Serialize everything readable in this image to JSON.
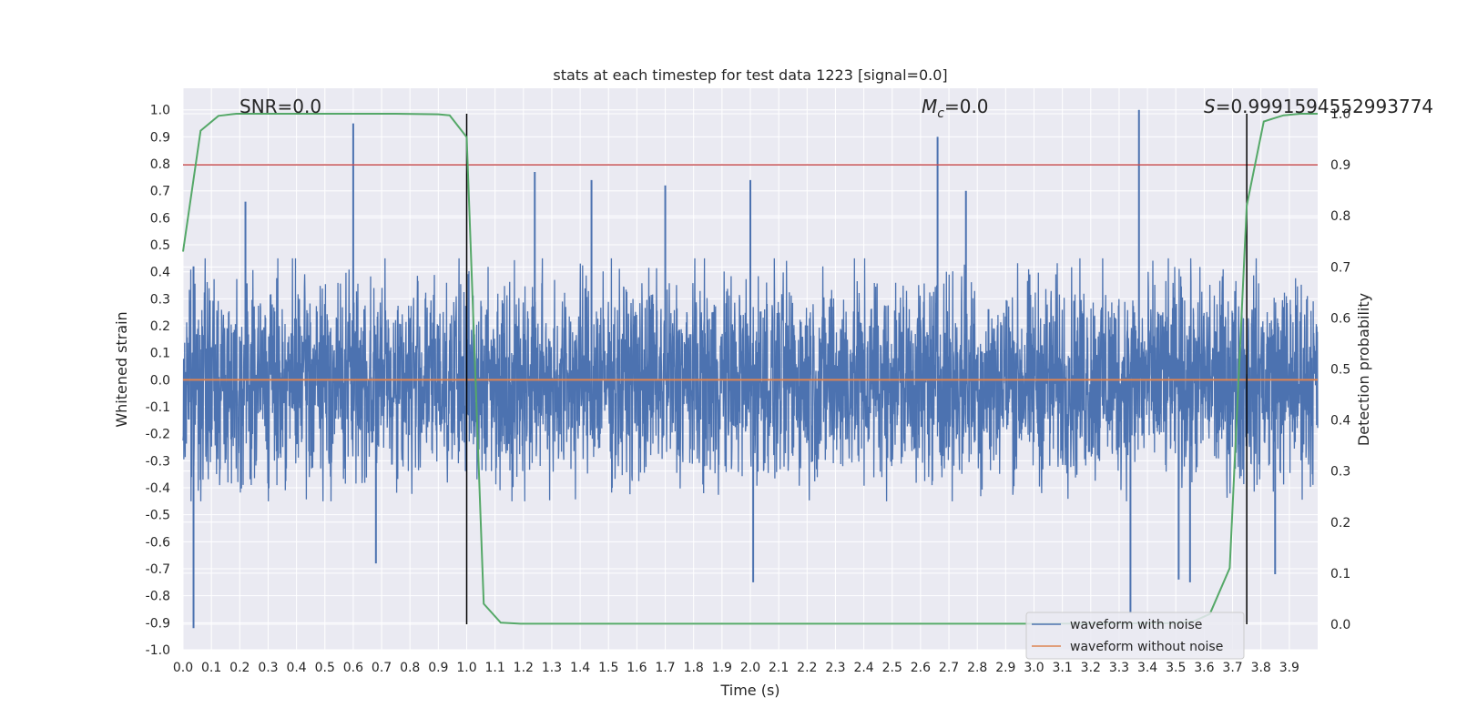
{
  "chart_data": {
    "type": "line",
    "title": "stats at each timestep for test data 1223 [signal=0.0]",
    "xlabel": "Time (s)",
    "ylabel": "Whitened strain",
    "ylabel_right": "Detection probability",
    "xlim": [
      0.0,
      4.0
    ],
    "ylim": [
      -1.0,
      1.08
    ],
    "ylim_right": [
      -0.05,
      1.05
    ],
    "x_ticks": [
      0.0,
      0.1,
      0.2,
      0.3,
      0.4,
      0.5,
      0.6,
      0.7,
      0.8,
      0.9,
      1.0,
      1.1,
      1.2,
      1.3,
      1.4,
      1.5,
      1.6,
      1.7,
      1.8,
      1.9,
      2.0,
      2.1,
      2.2,
      2.3,
      2.4,
      2.5,
      2.6,
      2.7,
      2.8,
      2.9,
      3.0,
      3.1,
      3.2,
      3.3,
      3.4,
      3.5,
      3.6,
      3.7,
      3.8,
      3.9
    ],
    "x_tick_labels": [
      "0.0",
      "0.1",
      "0.2",
      "0.3",
      "0.4",
      "0.5",
      "0.6",
      "0.7",
      "0.8",
      "0.9",
      "1.0",
      "1.1",
      "1.2",
      "1.3",
      "1.4",
      "1.5",
      "1.6",
      "1.7",
      "1.8",
      "1.9",
      "2.0",
      "2.1",
      "2.2",
      "2.3",
      "2.4",
      "2.5",
      "2.6",
      "2.7",
      "2.8",
      "2.9",
      "3.0",
      "3.1",
      "3.2",
      "3.3",
      "3.4",
      "3.5",
      "3.6",
      "3.7",
      "3.8",
      "3.9"
    ],
    "y_ticks": [
      -1.0,
      -0.9,
      -0.8,
      -0.7,
      -0.6,
      -0.5,
      -0.4,
      -0.3,
      -0.2,
      -0.1,
      0.0,
      0.1,
      0.2,
      0.3,
      0.4,
      0.5,
      0.6,
      0.7,
      0.8,
      0.9,
      1.0
    ],
    "y_tick_labels": [
      "-1.0",
      "-0.9",
      "-0.8",
      "-0.7",
      "-0.6",
      "-0.5",
      "-0.4",
      "-0.3",
      "-0.2",
      "-0.1",
      "0.0",
      "0.1",
      "0.2",
      "0.3",
      "0.4",
      "0.5",
      "0.6",
      "0.7",
      "0.8",
      "0.9",
      "1.0"
    ],
    "y_right_ticks": [
      0.0,
      0.1,
      0.2,
      0.3,
      0.4,
      0.5,
      0.6,
      0.7,
      0.8,
      0.9,
      1.0
    ],
    "y_right_tick_labels": [
      "0.0",
      "0.1",
      "0.2",
      "0.3",
      "0.4",
      "0.5",
      "0.6",
      "0.7",
      "0.8",
      "0.9",
      "1.0"
    ],
    "grid": true,
    "legend": {
      "placement": "lower-right",
      "entries": [
        {
          "label": "waveform with noise",
          "color": "#4c72b0"
        },
        {
          "label": "waveform without noise",
          "color": "#dd8452"
        }
      ]
    },
    "annotations": {
      "snr": "SNR=0.0",
      "mc_symbol": "M",
      "mc_sub": "c",
      "mc_value": "=0.0",
      "s_symbol": "S",
      "s_value": "=0.9991594552993774"
    },
    "series": [
      {
        "name": "waveform with noise",
        "color": "#4c72b0",
        "axis": "left",
        "style": "noise",
        "n_samples": 4096,
        "envelope_upper": 0.45,
        "envelope_lower": -0.45,
        "spikes": [
          {
            "x": 0.037,
            "y": 0.42
          },
          {
            "x": 0.037,
            "y": -0.92
          },
          {
            "x": 0.22,
            "y": 0.66
          },
          {
            "x": 0.6,
            "y": 0.95
          },
          {
            "x": 0.68,
            "y": -0.68
          },
          {
            "x": 1.24,
            "y": 0.77
          },
          {
            "x": 1.44,
            "y": 0.74
          },
          {
            "x": 1.7,
            "y": 0.72
          },
          {
            "x": 2.0,
            "y": 0.74
          },
          {
            "x": 2.01,
            "y": -0.75
          },
          {
            "x": 2.66,
            "y": 0.9
          },
          {
            "x": 2.76,
            "y": 0.7
          },
          {
            "x": 3.37,
            "y": 1.0
          },
          {
            "x": 3.34,
            "y": -0.86
          },
          {
            "x": 3.51,
            "y": -0.74
          },
          {
            "x": 3.55,
            "y": -0.75
          },
          {
            "x": 3.85,
            "y": -0.72
          }
        ]
      },
      {
        "name": "waveform without noise",
        "color": "#dd8452",
        "axis": "left",
        "x": [
          0.0,
          4.0
        ],
        "y": [
          0.0,
          0.0
        ]
      },
      {
        "name": "detection probability",
        "color": "#55a868",
        "axis": "right",
        "x": [
          0.0,
          0.062,
          0.125,
          0.188,
          0.25,
          0.5,
          0.75,
          0.9,
          0.94,
          1.0,
          1.06,
          1.12,
          1.19,
          1.5,
          2.0,
          2.5,
          3.0,
          3.5,
          3.56,
          3.62,
          3.69,
          3.75,
          3.81,
          3.88,
          3.94,
          4.0
        ],
        "y": [
          0.73,
          0.967,
          0.996,
          1.0,
          1.0,
          1.0,
          1.0,
          0.999,
          0.997,
          0.954,
          0.04,
          0.003,
          0.001,
          0.001,
          0.001,
          0.001,
          0.001,
          0.002,
          0.005,
          0.02,
          0.11,
          0.82,
          0.985,
          0.997,
          1.0,
          1.0
        ]
      }
    ],
    "threshold_line": {
      "y": 0.9,
      "axis": "right",
      "color": "#c44e52"
    },
    "vertical_lines": [
      {
        "x": 1.0,
        "color": "#000000"
      },
      {
        "x": 3.75,
        "color": "#000000"
      }
    ]
  }
}
